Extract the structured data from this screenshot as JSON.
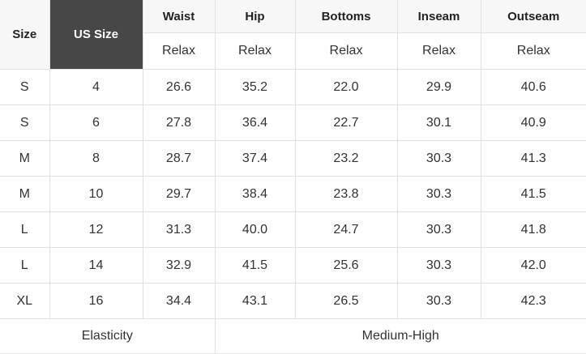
{
  "chart_data": {
    "type": "table",
    "header": {
      "size_label": "Size",
      "us_size_label": "US Size",
      "measure_columns": [
        {
          "label": "Waist",
          "sub": "Relax"
        },
        {
          "label": "Hip",
          "sub": "Relax"
        },
        {
          "label": "Bottoms",
          "sub": "Relax"
        },
        {
          "label": "Inseam",
          "sub": "Relax"
        },
        {
          "label": "Outseam",
          "sub": "Relax"
        }
      ]
    },
    "rows": [
      {
        "size": "S",
        "us_size": "4",
        "waist": "26.6",
        "hip": "35.2",
        "bottoms": "22.0",
        "inseam": "29.9",
        "outseam": "40.6"
      },
      {
        "size": "S",
        "us_size": "6",
        "waist": "27.8",
        "hip": "36.4",
        "bottoms": "22.7",
        "inseam": "30.1",
        "outseam": "40.9"
      },
      {
        "size": "M",
        "us_size": "8",
        "waist": "28.7",
        "hip": "37.4",
        "bottoms": "23.2",
        "inseam": "30.3",
        "outseam": "41.3"
      },
      {
        "size": "M",
        "us_size": "10",
        "waist": "29.7",
        "hip": "38.4",
        "bottoms": "23.8",
        "inseam": "30.3",
        "outseam": "41.5"
      },
      {
        "size": "L",
        "us_size": "12",
        "waist": "31.3",
        "hip": "40.0",
        "bottoms": "24.7",
        "inseam": "30.3",
        "outseam": "41.8"
      },
      {
        "size": "L",
        "us_size": "14",
        "waist": "32.9",
        "hip": "41.5",
        "bottoms": "25.6",
        "inseam": "30.3",
        "outseam": "42.0"
      },
      {
        "size": "XL",
        "us_size": "16",
        "waist": "34.4",
        "hip": "43.1",
        "bottoms": "26.5",
        "inseam": "30.3",
        "outseam": "42.3"
      }
    ],
    "footer": {
      "label": "Elasticity",
      "value": "Medium-High"
    }
  },
  "colors": {
    "dark_header_bg": "#474747",
    "dark_header_text": "#ffffff",
    "light_header_bg": "#f7f7f7",
    "border": "#e1e1e1",
    "text": "#333333",
    "row_bg": "#ffffff"
  }
}
